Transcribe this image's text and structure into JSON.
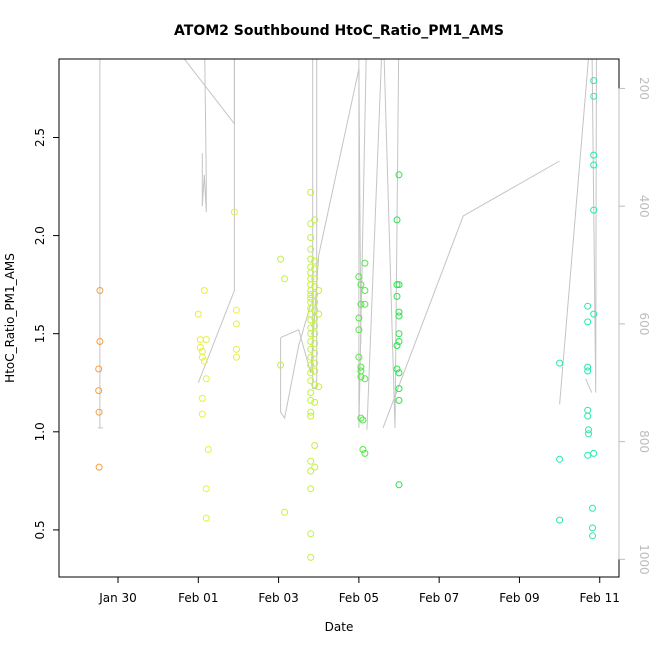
{
  "chart_data": {
    "type": "scatter",
    "title": "ATOM2 Southbound HtoC_Ratio_PM1_AMS",
    "xlabel": "Date",
    "ylabel": "HtoC_Ratio_PM1_AMS",
    "x_ticks": [
      "Jan 30",
      "Feb 01",
      "Feb 03",
      "Feb 05",
      "Feb 07",
      "Feb 09",
      "Feb 11"
    ],
    "x_tick_days": [
      30,
      32,
      34,
      36,
      38,
      40,
      42
    ],
    "xlim": [
      28.53,
      42.48
    ],
    "ylim": [
      0.26,
      2.9
    ],
    "y_ticks": [
      0.5,
      1.0,
      1.5,
      2.0,
      2.5
    ],
    "y_tick_labels": [
      "0.5",
      "1.0",
      "1.5",
      "2.0",
      "2.5"
    ],
    "y2_ticks": [
      200,
      400,
      600,
      800,
      1000
    ],
    "y2_tick_labels": [
      "200",
      "400",
      "600",
      "800",
      "1000"
    ],
    "y2lim": [
      1030,
      150
    ],
    "grid": false,
    "colors": {
      "line": "#c4c4c4",
      "axis": "#000000",
      "right_axis": "#bdbdbd"
    },
    "series": [
      {
        "color": "#f5a040",
        "points": [
          [
            29.55,
            1.72
          ],
          [
            29.55,
            1.46
          ],
          [
            29.52,
            1.32
          ],
          [
            29.52,
            1.21
          ],
          [
            29.53,
            1.1
          ],
          [
            29.53,
            0.82
          ]
        ]
      },
      {
        "color": "#e9f03a",
        "points": [
          [
            32.0,
            1.6
          ],
          [
            32.05,
            1.47
          ],
          [
            32.05,
            1.43
          ],
          [
            32.1,
            1.41
          ],
          [
            32.1,
            1.38
          ],
          [
            32.2,
            1.47
          ],
          [
            32.15,
            1.72
          ],
          [
            32.15,
            1.36
          ],
          [
            32.2,
            1.27
          ],
          [
            32.1,
            1.17
          ],
          [
            32.1,
            1.09
          ],
          [
            32.25,
            0.91
          ],
          [
            32.2,
            0.71
          ],
          [
            32.2,
            0.56
          ],
          [
            32.9,
            2.12
          ],
          [
            32.95,
            1.62
          ],
          [
            32.95,
            1.55
          ],
          [
            32.95,
            1.42
          ],
          [
            32.95,
            1.38
          ]
        ]
      },
      {
        "color": "#c2f23c",
        "points": [
          [
            34.05,
            1.88
          ],
          [
            34.05,
            1.34
          ],
          [
            34.15,
            1.78
          ],
          [
            34.15,
            0.59
          ],
          [
            34.8,
            2.22
          ],
          [
            34.8,
            2.06
          ],
          [
            34.8,
            1.99
          ],
          [
            34.8,
            1.93
          ],
          [
            34.8,
            1.88
          ],
          [
            34.8,
            1.84
          ],
          [
            34.8,
            1.81
          ],
          [
            34.8,
            1.78
          ],
          [
            34.8,
            1.75
          ],
          [
            34.8,
            1.72
          ],
          [
            34.8,
            1.7
          ],
          [
            34.8,
            1.68
          ],
          [
            34.8,
            1.66
          ],
          [
            34.8,
            1.63
          ],
          [
            34.8,
            1.6
          ],
          [
            34.8,
            1.57
          ],
          [
            34.8,
            1.53
          ],
          [
            34.8,
            1.5
          ],
          [
            34.8,
            1.46
          ],
          [
            34.8,
            1.42
          ],
          [
            34.8,
            1.38
          ],
          [
            34.8,
            1.34
          ],
          [
            34.8,
            1.3
          ],
          [
            34.8,
            1.26
          ],
          [
            34.8,
            1.2
          ],
          [
            34.8,
            1.16
          ],
          [
            34.8,
            1.1
          ],
          [
            34.8,
            1.08
          ],
          [
            34.8,
            0.85
          ],
          [
            34.8,
            0.8
          ],
          [
            34.8,
            0.71
          ],
          [
            34.8,
            0.48
          ],
          [
            34.8,
            0.36
          ],
          [
            34.9,
            2.08
          ],
          [
            34.9,
            1.87
          ],
          [
            34.9,
            1.83
          ],
          [
            34.9,
            1.78
          ],
          [
            34.9,
            1.74
          ],
          [
            34.9,
            1.7
          ],
          [
            34.9,
            1.66
          ],
          [
            34.9,
            1.62
          ],
          [
            34.9,
            1.58
          ],
          [
            34.9,
            1.54
          ],
          [
            34.9,
            1.5
          ],
          [
            34.9,
            1.45
          ],
          [
            34.9,
            1.4
          ],
          [
            34.9,
            1.35
          ],
          [
            34.9,
            1.31
          ],
          [
            34.9,
            1.24
          ],
          [
            34.9,
            1.15
          ],
          [
            34.9,
            0.93
          ],
          [
            34.9,
            0.82
          ],
          [
            35.0,
            1.6
          ],
          [
            35.0,
            1.23
          ],
          [
            35.0,
            1.72
          ]
        ]
      },
      {
        "color": "#52e843",
        "points": [
          [
            36.0,
            1.79
          ],
          [
            36.05,
            1.75
          ],
          [
            36.05,
            1.65
          ],
          [
            36.0,
            1.58
          ],
          [
            36.0,
            1.52
          ],
          [
            36.0,
            1.38
          ],
          [
            36.05,
            1.33
          ],
          [
            36.05,
            1.31
          ],
          [
            36.05,
            1.28
          ],
          [
            36.05,
            1.07
          ],
          [
            36.1,
            0.91
          ],
          [
            36.15,
            0.89
          ],
          [
            36.15,
            1.86
          ],
          [
            36.15,
            1.72
          ],
          [
            36.15,
            1.65
          ],
          [
            36.15,
            1.27
          ],
          [
            36.1,
            1.06
          ]
        ]
      },
      {
        "color": "#2de24e",
        "points": [
          [
            36.95,
            2.08
          ],
          [
            36.95,
            1.75
          ],
          [
            36.95,
            1.69
          ],
          [
            37.0,
            1.59
          ],
          [
            37.0,
            1.5
          ],
          [
            37.0,
            1.46
          ],
          [
            36.95,
            1.44
          ],
          [
            36.95,
            1.32
          ],
          [
            37.0,
            1.3
          ],
          [
            37.0,
            1.22
          ],
          [
            37.0,
            1.16
          ],
          [
            37.0,
            0.73
          ],
          [
            37.0,
            2.31
          ],
          [
            37.0,
            1.75
          ],
          [
            37.0,
            1.61
          ]
        ]
      },
      {
        "color": "#28e8b0",
        "points": [
          [
            41.0,
            1.35
          ],
          [
            41.0,
            0.86
          ],
          [
            41.0,
            0.55
          ],
          [
            41.7,
            1.64
          ],
          [
            41.7,
            1.56
          ],
          [
            41.7,
            1.33
          ],
          [
            41.7,
            1.31
          ],
          [
            41.7,
            1.11
          ],
          [
            41.7,
            1.08
          ],
          [
            41.72,
            1.01
          ],
          [
            41.72,
            0.99
          ],
          [
            41.7,
            0.88
          ],
          [
            41.85,
            2.79
          ],
          [
            41.85,
            2.71
          ],
          [
            41.85,
            2.41
          ],
          [
            41.85,
            2.36
          ],
          [
            41.85,
            2.13
          ],
          [
            41.85,
            1.6
          ],
          [
            41.85,
            0.89
          ],
          [
            41.82,
            0.61
          ],
          [
            41.82,
            0.51
          ],
          [
            41.82,
            0.47
          ]
        ]
      }
    ],
    "line_segments": [
      [
        [
          29.55,
          3.1
        ],
        [
          29.55,
          1.02
        ]
      ],
      [
        [
          29.5,
          1.02
        ],
        [
          29.62,
          1.02
        ]
      ],
      [
        [
          30.9,
          3.1
        ],
        [
          32.9,
          2.57
        ],
        [
          32.9,
          3.1
        ]
      ],
      [
        [
          32.0,
          1.25
        ],
        [
          32.9,
          1.72
        ],
        [
          32.9,
          3.1
        ]
      ],
      [
        [
          32.1,
          2.42
        ],
        [
          32.1,
          2.15
        ],
        [
          32.15,
          2.31
        ],
        [
          32.2,
          2.12
        ],
        [
          32.2,
          2.28
        ],
        [
          32.15,
          3.1
        ]
      ],
      [
        [
          34.05,
          1.48
        ],
        [
          34.05,
          1.1
        ],
        [
          34.15,
          1.07
        ],
        [
          34.5,
          1.44
        ],
        [
          34.8,
          1.65
        ]
      ],
      [
        [
          34.05,
          1.48
        ],
        [
          34.5,
          1.52
        ],
        [
          34.8,
          1.3
        ],
        [
          35.0,
          1.9
        ]
      ],
      [
        [
          34.85,
          3.1
        ],
        [
          34.85,
          1.22
        ],
        [
          34.95,
          1.22
        ],
        [
          34.95,
          3.1
        ]
      ],
      [
        [
          35.0,
          1.9
        ],
        [
          36.0,
          2.85
        ],
        [
          36.05,
          1.45
        ]
      ],
      [
        [
          36.0,
          3.1
        ],
        [
          36.0,
          1.02
        ],
        [
          36.2,
          3.1
        ]
      ],
      [
        [
          36.2,
          1.01
        ],
        [
          36.6,
          3.1
        ],
        [
          36.9,
          1.02
        ],
        [
          37.0,
          3.1
        ]
      ],
      [
        [
          36.6,
          1.02
        ],
        [
          38.6,
          2.1
        ],
        [
          41.0,
          2.38
        ]
      ],
      [
        [
          41.0,
          1.14
        ],
        [
          41.8,
          3.1
        ],
        [
          41.9,
          1.2
        ],
        [
          41.92,
          3.1
        ]
      ],
      [
        [
          41.65,
          1.27
        ],
        [
          41.8,
          1.2
        ]
      ]
    ]
  }
}
